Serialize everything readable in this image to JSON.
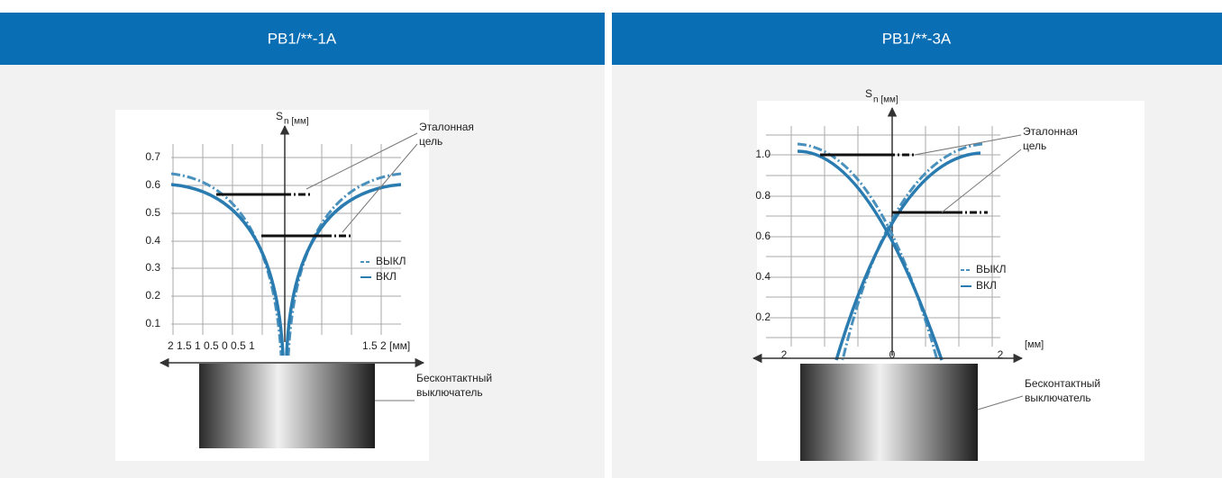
{
  "panels": [
    {
      "title": "PB1/**-1A",
      "axis_label": {
        "main": "S",
        "sub": "n [мм]"
      },
      "y_labels": [
        "0.7",
        "0.6",
        "0.5",
        "0.4",
        "0.3",
        "0.2",
        "0.1"
      ],
      "x_labels": [
        "2 1.5 1 0.5 0 0.5 1",
        "1.5 2 [мм]"
      ],
      "target": [
        "Эталонная",
        "цель"
      ],
      "legend": [
        "ВЫКЛ",
        "ВКЛ"
      ],
      "sensor": [
        "Бесконтактный",
        "выключатель"
      ]
    },
    {
      "title": "PB1/**-3A",
      "axis_label": {
        "main": "S",
        "sub": "n [мм]"
      },
      "y_labels": [
        "1.0",
        "0.8",
        "0.6",
        "0.4",
        "0.2"
      ],
      "x_labels": [
        "2",
        "0",
        "2",
        "[мм]"
      ],
      "target": [
        "Эталонная",
        "цель"
      ],
      "legend": [
        "ВЫКЛ",
        "ВКЛ"
      ],
      "sensor": [
        "Бесконтактный",
        "выключатель"
      ]
    }
  ]
}
